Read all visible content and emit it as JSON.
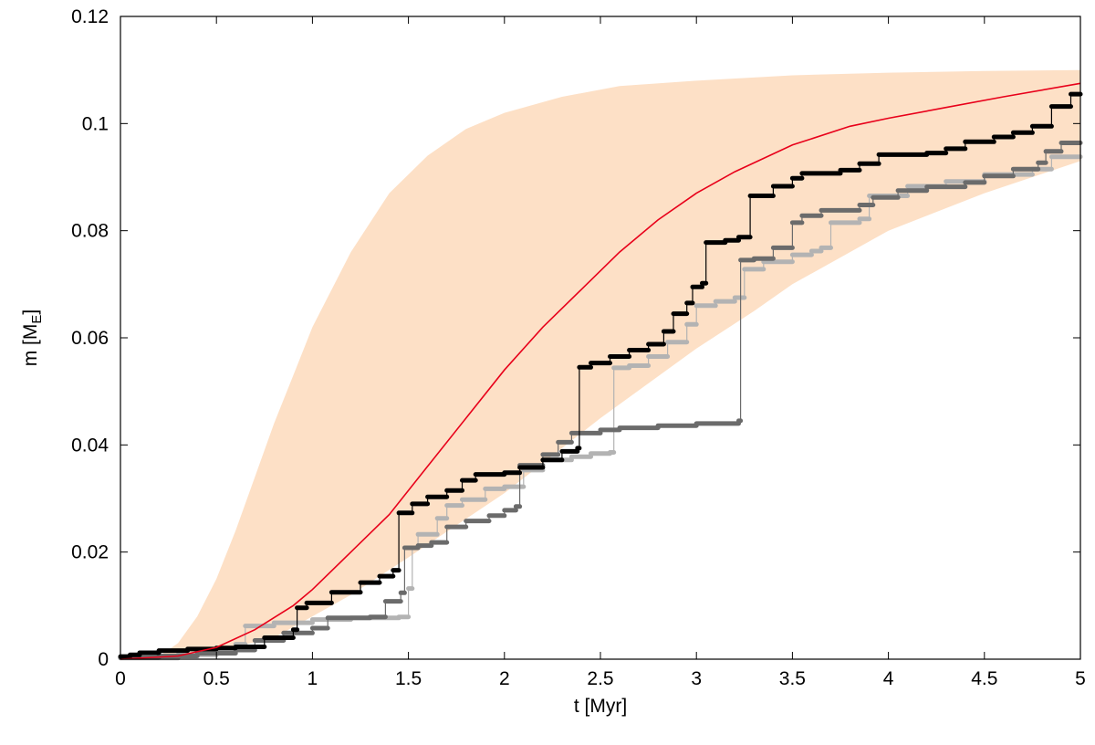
{
  "chart_data": {
    "type": "line",
    "xlabel": "t [Myr]",
    "ylabel_main": "m [M",
    "ylabel_sub": "E",
    "ylabel_end": "]",
    "xlim": [
      0,
      5
    ],
    "ylim": [
      0,
      0.12
    ],
    "xticks": [
      {
        "value": 0,
        "label": "0"
      },
      {
        "value": 0.5,
        "label": "0.5"
      },
      {
        "value": 1,
        "label": "1"
      },
      {
        "value": 1.5,
        "label": "1.5"
      },
      {
        "value": 2,
        "label": "2"
      },
      {
        "value": 2.5,
        "label": "2.5"
      },
      {
        "value": 3,
        "label": "3"
      },
      {
        "value": 3.5,
        "label": "3.5"
      },
      {
        "value": 4,
        "label": "4"
      },
      {
        "value": 4.5,
        "label": "4.5"
      },
      {
        "value": 5,
        "label": "5"
      }
    ],
    "yticks": [
      {
        "value": 0,
        "label": "0"
      },
      {
        "value": 0.02,
        "label": "0.02"
      },
      {
        "value": 0.04,
        "label": "0.04"
      },
      {
        "value": 0.06,
        "label": "0.06"
      },
      {
        "value": 0.08,
        "label": "0.08"
      },
      {
        "value": 0.1,
        "label": "0.1"
      },
      {
        "value": 0.12,
        "label": "0.12"
      }
    ],
    "grid": false,
    "legend": "none",
    "band": {
      "color": "#fde0c6",
      "upper": [
        [
          0,
          0
        ],
        [
          0.2,
          0.0005
        ],
        [
          0.3,
          0.003
        ],
        [
          0.4,
          0.008
        ],
        [
          0.5,
          0.015
        ],
        [
          0.6,
          0.024
        ],
        [
          0.7,
          0.034
        ],
        [
          0.8,
          0.044
        ],
        [
          0.9,
          0.053
        ],
        [
          1.0,
          0.062
        ],
        [
          1.2,
          0.076
        ],
        [
          1.4,
          0.087
        ],
        [
          1.6,
          0.094
        ],
        [
          1.8,
          0.099
        ],
        [
          2.0,
          0.102
        ],
        [
          2.3,
          0.105
        ],
        [
          2.6,
          0.107
        ],
        [
          3.0,
          0.108
        ],
        [
          3.5,
          0.109
        ],
        [
          4.0,
          0.1095
        ],
        [
          4.5,
          0.1098
        ],
        [
          5.0,
          0.11
        ]
      ],
      "lower": [
        [
          0,
          0
        ],
        [
          0.5,
          0.0015
        ],
        [
          0.8,
          0.004
        ],
        [
          1.0,
          0.008
        ],
        [
          1.2,
          0.012
        ],
        [
          1.5,
          0.019
        ],
        [
          2.0,
          0.031
        ],
        [
          2.5,
          0.045
        ],
        [
          3.0,
          0.058
        ],
        [
          3.3,
          0.065
        ],
        [
          3.5,
          0.07
        ],
        [
          4.0,
          0.08
        ],
        [
          4.5,
          0.087
        ],
        [
          5.0,
          0.093
        ]
      ]
    },
    "series": [
      {
        "color": "#e8001a",
        "style": "line",
        "points": [
          [
            0,
            0
          ],
          [
            0.3,
            0.0006
          ],
          [
            0.5,
            0.0022
          ],
          [
            0.7,
            0.0055
          ],
          [
            0.9,
            0.01
          ],
          [
            1.0,
            0.013
          ],
          [
            1.2,
            0.02
          ],
          [
            1.4,
            0.027
          ],
          [
            1.6,
            0.036
          ],
          [
            1.8,
            0.045
          ],
          [
            2.0,
            0.054
          ],
          [
            2.2,
            0.062
          ],
          [
            2.4,
            0.069
          ],
          [
            2.6,
            0.076
          ],
          [
            2.8,
            0.082
          ],
          [
            3.0,
            0.087
          ],
          [
            3.2,
            0.091
          ],
          [
            3.5,
            0.096
          ],
          [
            3.8,
            0.0995
          ],
          [
            4.0,
            0.101
          ],
          [
            4.3,
            0.103
          ],
          [
            4.6,
            0.105
          ],
          [
            5.0,
            0.1075
          ]
        ]
      },
      {
        "color": "#000000",
        "style": "step",
        "points": [
          [
            0,
            0.0005
          ],
          [
            0.05,
            0.0008
          ],
          [
            0.1,
            0.0012
          ],
          [
            0.2,
            0.0016
          ],
          [
            0.35,
            0.0019
          ],
          [
            0.5,
            0.0021
          ],
          [
            0.6,
            0.0023
          ],
          [
            0.75,
            0.004
          ],
          [
            0.9,
            0.0055
          ],
          [
            0.92,
            0.0096
          ],
          [
            0.97,
            0.0105
          ],
          [
            1.1,
            0.0125
          ],
          [
            1.25,
            0.0143
          ],
          [
            1.35,
            0.0155
          ],
          [
            1.42,
            0.0166
          ],
          [
            1.45,
            0.0273
          ],
          [
            1.52,
            0.029
          ],
          [
            1.6,
            0.0303
          ],
          [
            1.7,
            0.0315
          ],
          [
            1.78,
            0.0334
          ],
          [
            1.85,
            0.0345
          ],
          [
            2.0,
            0.0348
          ],
          [
            2.08,
            0.0358
          ],
          [
            2.2,
            0.0372
          ],
          [
            2.3,
            0.0388
          ],
          [
            2.38,
            0.0394
          ],
          [
            2.39,
            0.0545
          ],
          [
            2.45,
            0.0553
          ],
          [
            2.55,
            0.0565
          ],
          [
            2.65,
            0.0577
          ],
          [
            2.75,
            0.0588
          ],
          [
            2.83,
            0.0612
          ],
          [
            2.88,
            0.0645
          ],
          [
            2.95,
            0.0665
          ],
          [
            2.98,
            0.0695
          ],
          [
            3.03,
            0.0702
          ],
          [
            3.05,
            0.0778
          ],
          [
            3.15,
            0.0782
          ],
          [
            3.22,
            0.0788
          ],
          [
            3.28,
            0.0865
          ],
          [
            3.4,
            0.0883
          ],
          [
            3.5,
            0.0898
          ],
          [
            3.55,
            0.0907
          ],
          [
            3.75,
            0.0913
          ],
          [
            3.85,
            0.0925
          ],
          [
            3.95,
            0.0942
          ],
          [
            4.2,
            0.0945
          ],
          [
            4.3,
            0.0953
          ],
          [
            4.4,
            0.0966
          ],
          [
            4.55,
            0.0975
          ],
          [
            4.65,
            0.0983
          ],
          [
            4.75,
            0.0995
          ],
          [
            4.85,
            0.1032
          ],
          [
            4.95,
            0.1055
          ],
          [
            5.0,
            0.1058
          ]
        ]
      },
      {
        "color": "#6b6b6b",
        "style": "step",
        "points": [
          [
            0,
            0.0003
          ],
          [
            0.2,
            0.0006
          ],
          [
            0.4,
            0.0011
          ],
          [
            0.6,
            0.0017
          ],
          [
            0.7,
            0.0035
          ],
          [
            0.85,
            0.0049
          ],
          [
            1.0,
            0.0058
          ],
          [
            1.08,
            0.0077
          ],
          [
            1.3,
            0.0079
          ],
          [
            1.38,
            0.0108
          ],
          [
            1.46,
            0.0124
          ],
          [
            1.48,
            0.0208
          ],
          [
            1.55,
            0.0212
          ],
          [
            1.62,
            0.0218
          ],
          [
            1.7,
            0.0247
          ],
          [
            1.8,
            0.0258
          ],
          [
            1.92,
            0.0268
          ],
          [
            2.0,
            0.0278
          ],
          [
            2.06,
            0.0285
          ],
          [
            2.08,
            0.0362
          ],
          [
            2.2,
            0.0382
          ],
          [
            2.28,
            0.0405
          ],
          [
            2.35,
            0.0422
          ],
          [
            2.5,
            0.0428
          ],
          [
            2.6,
            0.0432
          ],
          [
            2.8,
            0.0436
          ],
          [
            3.0,
            0.044
          ],
          [
            3.22,
            0.0445
          ],
          [
            3.23,
            0.0745
          ],
          [
            3.3,
            0.0748
          ],
          [
            3.4,
            0.0768
          ],
          [
            3.5,
            0.0815
          ],
          [
            3.55,
            0.0828
          ],
          [
            3.65,
            0.0838
          ],
          [
            3.85,
            0.0848
          ],
          [
            3.92,
            0.0862
          ],
          [
            4.05,
            0.0875
          ],
          [
            4.2,
            0.0882
          ],
          [
            4.4,
            0.089
          ],
          [
            4.5,
            0.0902
          ],
          [
            4.65,
            0.0915
          ],
          [
            4.78,
            0.0927
          ],
          [
            4.82,
            0.0948
          ],
          [
            4.9,
            0.0964
          ],
          [
            5.0,
            0.0968
          ]
        ]
      },
      {
        "color": "#b3b3b3",
        "style": "step",
        "points": [
          [
            0,
            0.0002
          ],
          [
            0.3,
            0.0008
          ],
          [
            0.5,
            0.0014
          ],
          [
            0.6,
            0.0028
          ],
          [
            0.65,
            0.0062
          ],
          [
            0.8,
            0.0068
          ],
          [
            1.0,
            0.0074
          ],
          [
            1.2,
            0.0077
          ],
          [
            1.45,
            0.0079
          ],
          [
            1.5,
            0.0132
          ],
          [
            1.52,
            0.0208
          ],
          [
            1.55,
            0.0233
          ],
          [
            1.65,
            0.0263
          ],
          [
            1.7,
            0.0287
          ],
          [
            1.78,
            0.0298
          ],
          [
            1.9,
            0.0318
          ],
          [
            2.0,
            0.0322
          ],
          [
            2.1,
            0.0353
          ],
          [
            2.2,
            0.0372
          ],
          [
            2.35,
            0.0378
          ],
          [
            2.45,
            0.0384
          ],
          [
            2.55,
            0.0386
          ],
          [
            2.57,
            0.0544
          ],
          [
            2.65,
            0.0548
          ],
          [
            2.75,
            0.0565
          ],
          [
            2.85,
            0.0592
          ],
          [
            2.95,
            0.0625
          ],
          [
            3.0,
            0.066
          ],
          [
            3.1,
            0.0668
          ],
          [
            3.2,
            0.0675
          ],
          [
            3.25,
            0.0728
          ],
          [
            3.35,
            0.0742
          ],
          [
            3.5,
            0.0755
          ],
          [
            3.6,
            0.0762
          ],
          [
            3.65,
            0.0768
          ],
          [
            3.7,
            0.0815
          ],
          [
            3.85,
            0.0822
          ],
          [
            3.9,
            0.0865
          ],
          [
            4.1,
            0.0883
          ],
          [
            4.3,
            0.0892
          ],
          [
            4.5,
            0.0905
          ],
          [
            4.75,
            0.0915
          ],
          [
            4.85,
            0.0938
          ],
          [
            5.0,
            0.0955
          ]
        ]
      }
    ]
  }
}
